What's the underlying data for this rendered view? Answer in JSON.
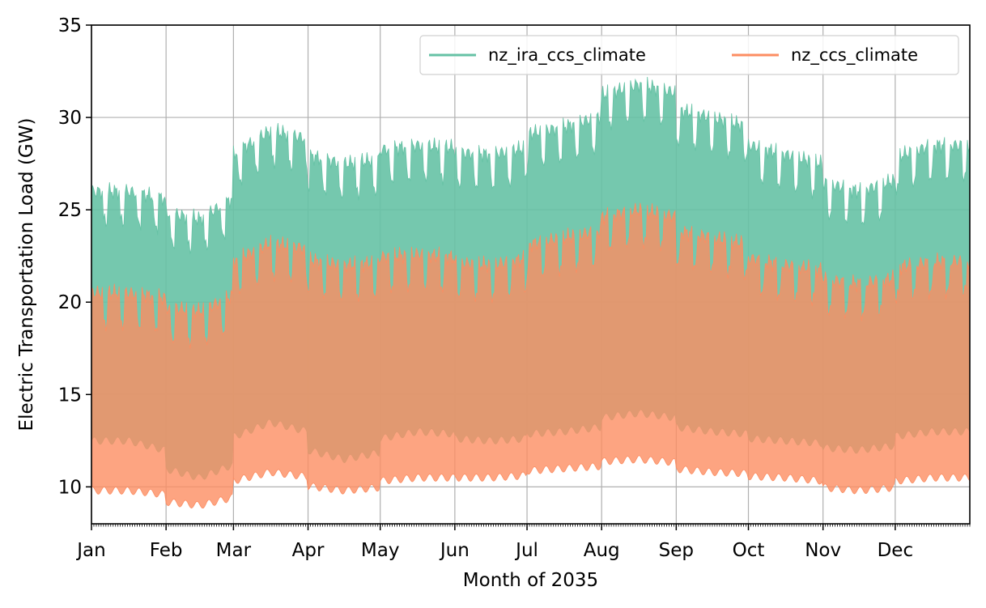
{
  "chart_data": {
    "type": "area",
    "title": "",
    "xlabel": "Month of 2035",
    "ylabel": "Electric Transportation Load (GW)",
    "ylim": [
      8,
      35
    ],
    "yticks": [
      10,
      15,
      20,
      25,
      30,
      35
    ],
    "xlim_days": [
      0,
      365
    ],
    "grid": true,
    "legend_position": "top-right",
    "legend_columns": 2,
    "months": [
      {
        "label": "Jan",
        "day": 0
      },
      {
        "label": "Feb",
        "day": 31
      },
      {
        "label": "Mar",
        "day": 59
      },
      {
        "label": "Apr",
        "day": 90
      },
      {
        "label": "May",
        "day": 120
      },
      {
        "label": "Jun",
        "day": 151
      },
      {
        "label": "Jul",
        "day": 181
      },
      {
        "label": "Aug",
        "day": 212
      },
      {
        "label": "Sep",
        "day": 243
      },
      {
        "label": "Oct",
        "day": 273
      },
      {
        "label": "Nov",
        "day": 304
      },
      {
        "label": "Dec",
        "day": 334
      }
    ],
    "series": [
      {
        "name": "nz_ira_ccs_climate",
        "color": "#66c2a5",
        "envelope_by_month": [
          {
            "month": "Jan",
            "min": 12.5,
            "max": 26.0
          },
          {
            "month": "Feb",
            "min": 10.5,
            "max": 24.5
          },
          {
            "month": "Mar",
            "min": 13.5,
            "max": 29.3
          },
          {
            "month": "Apr",
            "min": 11.5,
            "max": 27.5
          },
          {
            "month": "May",
            "min": 13.0,
            "max": 28.5
          },
          {
            "month": "Jun",
            "min": 12.5,
            "max": 28.0
          },
          {
            "month": "Jul",
            "min": 13.0,
            "max": 29.5
          },
          {
            "month": "Aug",
            "min": 14.0,
            "max": 31.8
          },
          {
            "month": "Sep",
            "min": 13.0,
            "max": 30.0
          },
          {
            "month": "Oct",
            "min": 12.5,
            "max": 28.0
          },
          {
            "month": "Nov",
            "min": 12.0,
            "max": 26.0
          },
          {
            "month": "Dec",
            "min": 13.0,
            "max": 28.5
          }
        ]
      },
      {
        "name": "nz_ccs_climate",
        "color": "#fc8d62",
        "envelope_by_month": [
          {
            "month": "Jan",
            "min": 9.8,
            "max": 20.5
          },
          {
            "month": "Feb",
            "min": 9.0,
            "max": 19.5
          },
          {
            "month": "Mar",
            "min": 10.8,
            "max": 23.2
          },
          {
            "month": "Apr",
            "min": 9.8,
            "max": 22.0
          },
          {
            "month": "May",
            "min": 10.5,
            "max": 22.6
          },
          {
            "month": "Jun",
            "min": 10.5,
            "max": 22.0
          },
          {
            "month": "Jul",
            "min": 11.0,
            "max": 23.5
          },
          {
            "month": "Aug",
            "min": 11.5,
            "max": 25.0
          },
          {
            "month": "Sep",
            "min": 10.8,
            "max": 23.5
          },
          {
            "month": "Oct",
            "min": 10.5,
            "max": 22.0
          },
          {
            "month": "Nov",
            "min": 9.8,
            "max": 21.0
          },
          {
            "month": "Dec",
            "min": 10.5,
            "max": 22.2
          }
        ]
      }
    ]
  }
}
